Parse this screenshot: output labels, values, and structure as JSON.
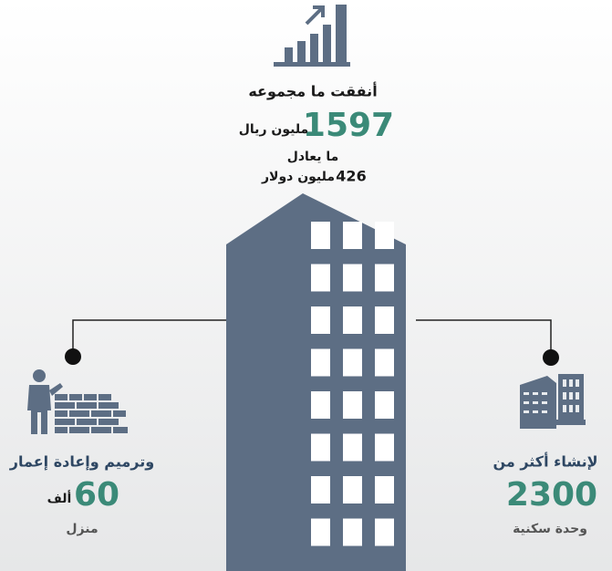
{
  "top": {
    "heading": "أنفقت ما مجموعه",
    "value": 1597,
    "unit": "مليون ريال",
    "equivalent": "ما يعادل",
    "usd_value": 426,
    "usd_unit": "مليون دولار"
  },
  "left": {
    "heading": "وترميم وإعادة إعمار",
    "value": 60,
    "unit": "ألف",
    "caption": "منزل"
  },
  "right": {
    "heading": "لإنشاء أكثر من",
    "value": 2300,
    "caption": "وحدة سكنية"
  }
}
